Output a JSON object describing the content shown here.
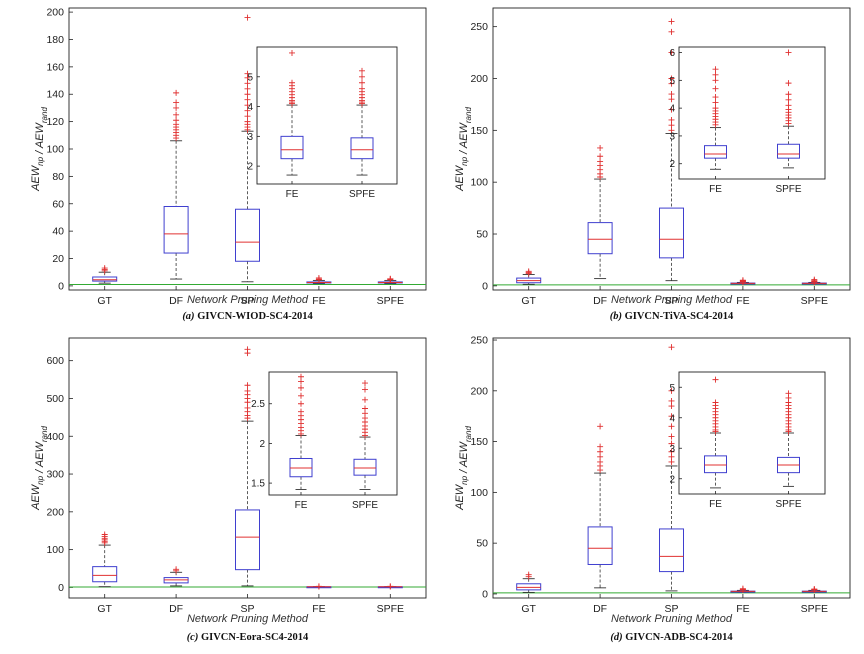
{
  "colors": {
    "box": "#3f3fcf",
    "median": "#e03030",
    "outlier": "#e03030",
    "whisker": "#333333",
    "reference": "#33aa33",
    "axis": "#222222"
  },
  "chart_data": [
    {
      "type": "box",
      "caption_letter": "(a)",
      "caption_text": "GIVCN-WIOD-SC4-2014",
      "xlabel": "Network Pruning Method",
      "ylabel": "AEW_np / AEW_rand",
      "categories": [
        "GT",
        "DF",
        "SP",
        "FE",
        "SPFE"
      ],
      "ylim": [
        -3,
        203
      ],
      "yticks": [
        0,
        20,
        40,
        60,
        80,
        100,
        120,
        140,
        160,
        180,
        200
      ],
      "reference_y": 1,
      "boxes": [
        {
          "name": "GT",
          "q1": 3.5,
          "median": 4.5,
          "q3": 6.5,
          "wlo": 2,
          "whi": 10,
          "outliers": [
            11,
            12,
            13
          ]
        },
        {
          "name": "DF",
          "q1": 24,
          "median": 38,
          "q3": 58,
          "wlo": 5,
          "whi": 106,
          "outliers": [
            108,
            110,
            112,
            114,
            116,
            118,
            121,
            125,
            130,
            134,
            141
          ]
        },
        {
          "name": "SP",
          "q1": 18,
          "median": 32,
          "q3": 56,
          "wlo": 3,
          "whi": 113,
          "outliers": [
            114,
            116,
            118,
            120,
            124,
            128,
            132,
            136,
            140,
            144,
            148,
            152,
            155,
            196
          ]
        },
        {
          "name": "FE",
          "q1": 2.2,
          "median": 2.5,
          "q3": 2.9,
          "wlo": 1.7,
          "whi": 4,
          "outliers": [
            4.5,
            5,
            5.8
          ]
        },
        {
          "name": "SPFE",
          "q1": 2.2,
          "median": 2.5,
          "q3": 2.9,
          "wlo": 1.7,
          "whi": 4,
          "outliers": [
            4.5,
            5,
            5.2
          ]
        }
      ],
      "inset": {
        "categories": [
          "FE",
          "SPFE"
        ],
        "ylim": [
          1.4,
          6.0
        ],
        "yticks": [
          2,
          3,
          4,
          5
        ],
        "boxes": [
          {
            "name": "FE",
            "q1": 2.25,
            "median": 2.55,
            "q3": 3.0,
            "wlo": 1.7,
            "whi": 4.05,
            "outliers": [
              4.1,
              4.15,
              4.2,
              4.3,
              4.4,
              4.5,
              4.6,
              4.7,
              4.8,
              5.8
            ]
          },
          {
            "name": "SPFE",
            "q1": 2.25,
            "median": 2.55,
            "q3": 2.95,
            "wlo": 1.7,
            "whi": 4.05,
            "outliers": [
              4.1,
              4.15,
              4.2,
              4.3,
              4.4,
              4.5,
              4.6,
              4.8,
              5.0,
              5.2
            ]
          }
        ]
      }
    },
    {
      "type": "box",
      "caption_letter": "(b)",
      "caption_text": "GIVCN-TiVA-SC4-2014",
      "xlabel": "Network Pruning Method",
      "ylabel": "AEW_np / AEW_rand",
      "categories": [
        "GT",
        "DF",
        "SP",
        "FE",
        "SPFE"
      ],
      "ylim": [
        -4,
        268
      ],
      "yticks": [
        0,
        50,
        100,
        150,
        200,
        250
      ],
      "reference_y": 1,
      "boxes": [
        {
          "name": "GT",
          "q1": 3,
          "median": 5,
          "q3": 7.5,
          "wlo": 1.5,
          "whi": 11,
          "outliers": [
            12,
            13,
            14
          ]
        },
        {
          "name": "DF",
          "q1": 31,
          "median": 45,
          "q3": 61,
          "wlo": 7,
          "whi": 103,
          "outliers": [
            105,
            108,
            112,
            116,
            120,
            125,
            133
          ]
        },
        {
          "name": "SP",
          "q1": 27,
          "median": 45,
          "q3": 75,
          "wlo": 5,
          "whi": 147,
          "outliers": [
            150,
            155,
            160,
            170,
            180,
            185,
            195,
            200,
            225,
            245,
            255
          ]
        },
        {
          "name": "FE",
          "q1": 2.2,
          "median": 2.4,
          "q3": 2.7,
          "wlo": 1.8,
          "whi": 3.3,
          "outliers": [
            3.5,
            4,
            4.5,
            5,
            5.4
          ]
        },
        {
          "name": "SPFE",
          "q1": 2.2,
          "median": 2.4,
          "q3": 2.7,
          "wlo": 1.8,
          "whi": 3.3,
          "outliers": [
            3.5,
            4,
            4.5,
            5,
            6
          ]
        }
      ],
      "inset": {
        "categories": [
          "FE",
          "SPFE"
        ],
        "ylim": [
          1.45,
          6.2
        ],
        "yticks": [
          2,
          3,
          4,
          5,
          6
        ],
        "boxes": [
          {
            "name": "FE",
            "q1": 2.2,
            "median": 2.35,
            "q3": 2.65,
            "wlo": 1.8,
            "whi": 3.3,
            "outliers": [
              3.4,
              3.5,
              3.6,
              3.7,
              3.8,
              3.9,
              4.0,
              4.2,
              4.4,
              4.7,
              5.0,
              5.2,
              5.4
            ]
          },
          {
            "name": "SPFE",
            "q1": 2.2,
            "median": 2.35,
            "q3": 2.7,
            "wlo": 1.85,
            "whi": 3.35,
            "outliers": [
              3.45,
              3.55,
              3.65,
              3.75,
              3.85,
              3.95,
              4.1,
              4.3,
              4.5,
              4.9,
              6.0
            ]
          }
        ]
      }
    },
    {
      "type": "box",
      "caption_letter": "(c)",
      "caption_text": "GIVCN-Eora-SC4-2014",
      "xlabel": "Network Pruning Method",
      "ylabel": "AEW_np / AEW_rand",
      "categories": [
        "GT",
        "DF",
        "SP",
        "FE",
        "SPFE"
      ],
      "ylim": [
        -28,
        660
      ],
      "yticks": [
        0,
        100,
        200,
        300,
        400,
        500,
        600
      ],
      "reference_y": 1,
      "boxes": [
        {
          "name": "GT",
          "q1": 15,
          "median": 32,
          "q3": 55,
          "wlo": 2,
          "whi": 112,
          "outliers": [
            118,
            122,
            126,
            130,
            135,
            140
          ]
        },
        {
          "name": "DF",
          "q1": 12,
          "median": 20,
          "q3": 26,
          "wlo": 4,
          "whi": 40,
          "outliers": [
            44,
            48
          ]
        },
        {
          "name": "SP",
          "q1": 47,
          "median": 133,
          "q3": 205,
          "wlo": 4,
          "whi": 440,
          "outliers": [
            448,
            455,
            465,
            475,
            490,
            500,
            510,
            520,
            535,
            620,
            630
          ]
        },
        {
          "name": "FE",
          "q1": 1.6,
          "median": 1.7,
          "q3": 1.8,
          "wlo": 1.4,
          "whi": 2.1,
          "outliers": [
            2.5,
            2.8
          ]
        },
        {
          "name": "SPFE",
          "q1": 1.6,
          "median": 1.7,
          "q3": 1.8,
          "wlo": 1.4,
          "whi": 2.1,
          "outliers": [
            2.5,
            2.75
          ]
        }
      ],
      "inset": {
        "categories": [
          "FE",
          "SPFE"
        ],
        "ylim": [
          1.35,
          2.9
        ],
        "yticks": [
          1.5,
          2,
          2.5
        ],
        "boxes": [
          {
            "name": "FE",
            "q1": 1.58,
            "median": 1.69,
            "q3": 1.81,
            "wlo": 1.42,
            "whi": 2.1,
            "outliers": [
              2.12,
              2.16,
              2.2,
              2.25,
              2.3,
              2.35,
              2.4,
              2.5,
              2.6,
              2.7,
              2.78,
              2.84
            ]
          },
          {
            "name": "SPFE",
            "q1": 1.6,
            "median": 1.69,
            "q3": 1.8,
            "wlo": 1.42,
            "whi": 2.08,
            "outliers": [
              2.1,
              2.14,
              2.18,
              2.22,
              2.27,
              2.32,
              2.38,
              2.44,
              2.55,
              2.68,
              2.76
            ]
          }
        ]
      }
    },
    {
      "type": "box",
      "caption_letter": "(d)",
      "caption_text": "GIVCN-ADB-SC4-2014",
      "xlabel": "Network Pruning Method",
      "ylabel": "AEW_np / AEW_rand",
      "categories": [
        "GT",
        "DF",
        "SP",
        "FE",
        "SPFE"
      ],
      "ylim": [
        -4,
        252
      ],
      "yticks": [
        0,
        50,
        100,
        150,
        200,
        250
      ],
      "reference_y": 1,
      "boxes": [
        {
          "name": "GT",
          "q1": 4,
          "median": 6.5,
          "q3": 10,
          "wlo": 1.5,
          "whi": 15,
          "outliers": [
            17,
            19
          ]
        },
        {
          "name": "DF",
          "q1": 29,
          "median": 45,
          "q3": 66,
          "wlo": 6,
          "whi": 119,
          "outliers": [
            122,
            126,
            130,
            135,
            140,
            145,
            165
          ]
        },
        {
          "name": "SP",
          "q1": 22,
          "median": 37,
          "q3": 64,
          "wlo": 3,
          "whi": 126,
          "outliers": [
            130,
            135,
            140,
            148,
            155,
            165,
            175,
            185,
            190,
            200,
            243
          ]
        },
        {
          "name": "FE",
          "q1": 2.2,
          "median": 2.5,
          "q3": 2.75,
          "wlo": 1.7,
          "whi": 3.5,
          "outliers": [
            4,
            4.5,
            5.2
          ]
        },
        {
          "name": "SPFE",
          "q1": 2.2,
          "median": 2.5,
          "q3": 2.75,
          "wlo": 1.75,
          "whi": 3.5,
          "outliers": [
            4,
            4.5,
            4.8
          ]
        }
      ],
      "inset": {
        "categories": [
          "FE",
          "SPFE"
        ],
        "ylim": [
          1.5,
          5.5
        ],
        "yticks": [
          2,
          3,
          4,
          5
        ],
        "boxes": [
          {
            "name": "FE",
            "q1": 2.2,
            "median": 2.45,
            "q3": 2.75,
            "wlo": 1.7,
            "whi": 3.5,
            "outliers": [
              3.55,
              3.6,
              3.7,
              3.8,
              3.9,
              4.0,
              4.1,
              4.2,
              4.3,
              4.4,
              4.5,
              5.25
            ]
          },
          {
            "name": "SPFE",
            "q1": 2.2,
            "median": 2.45,
            "q3": 2.7,
            "wlo": 1.75,
            "whi": 3.5,
            "outliers": [
              3.55,
              3.6,
              3.7,
              3.8,
              3.9,
              4.0,
              4.1,
              4.2,
              4.3,
              4.4,
              4.5,
              4.65,
              4.8
            ]
          }
        ]
      }
    }
  ]
}
